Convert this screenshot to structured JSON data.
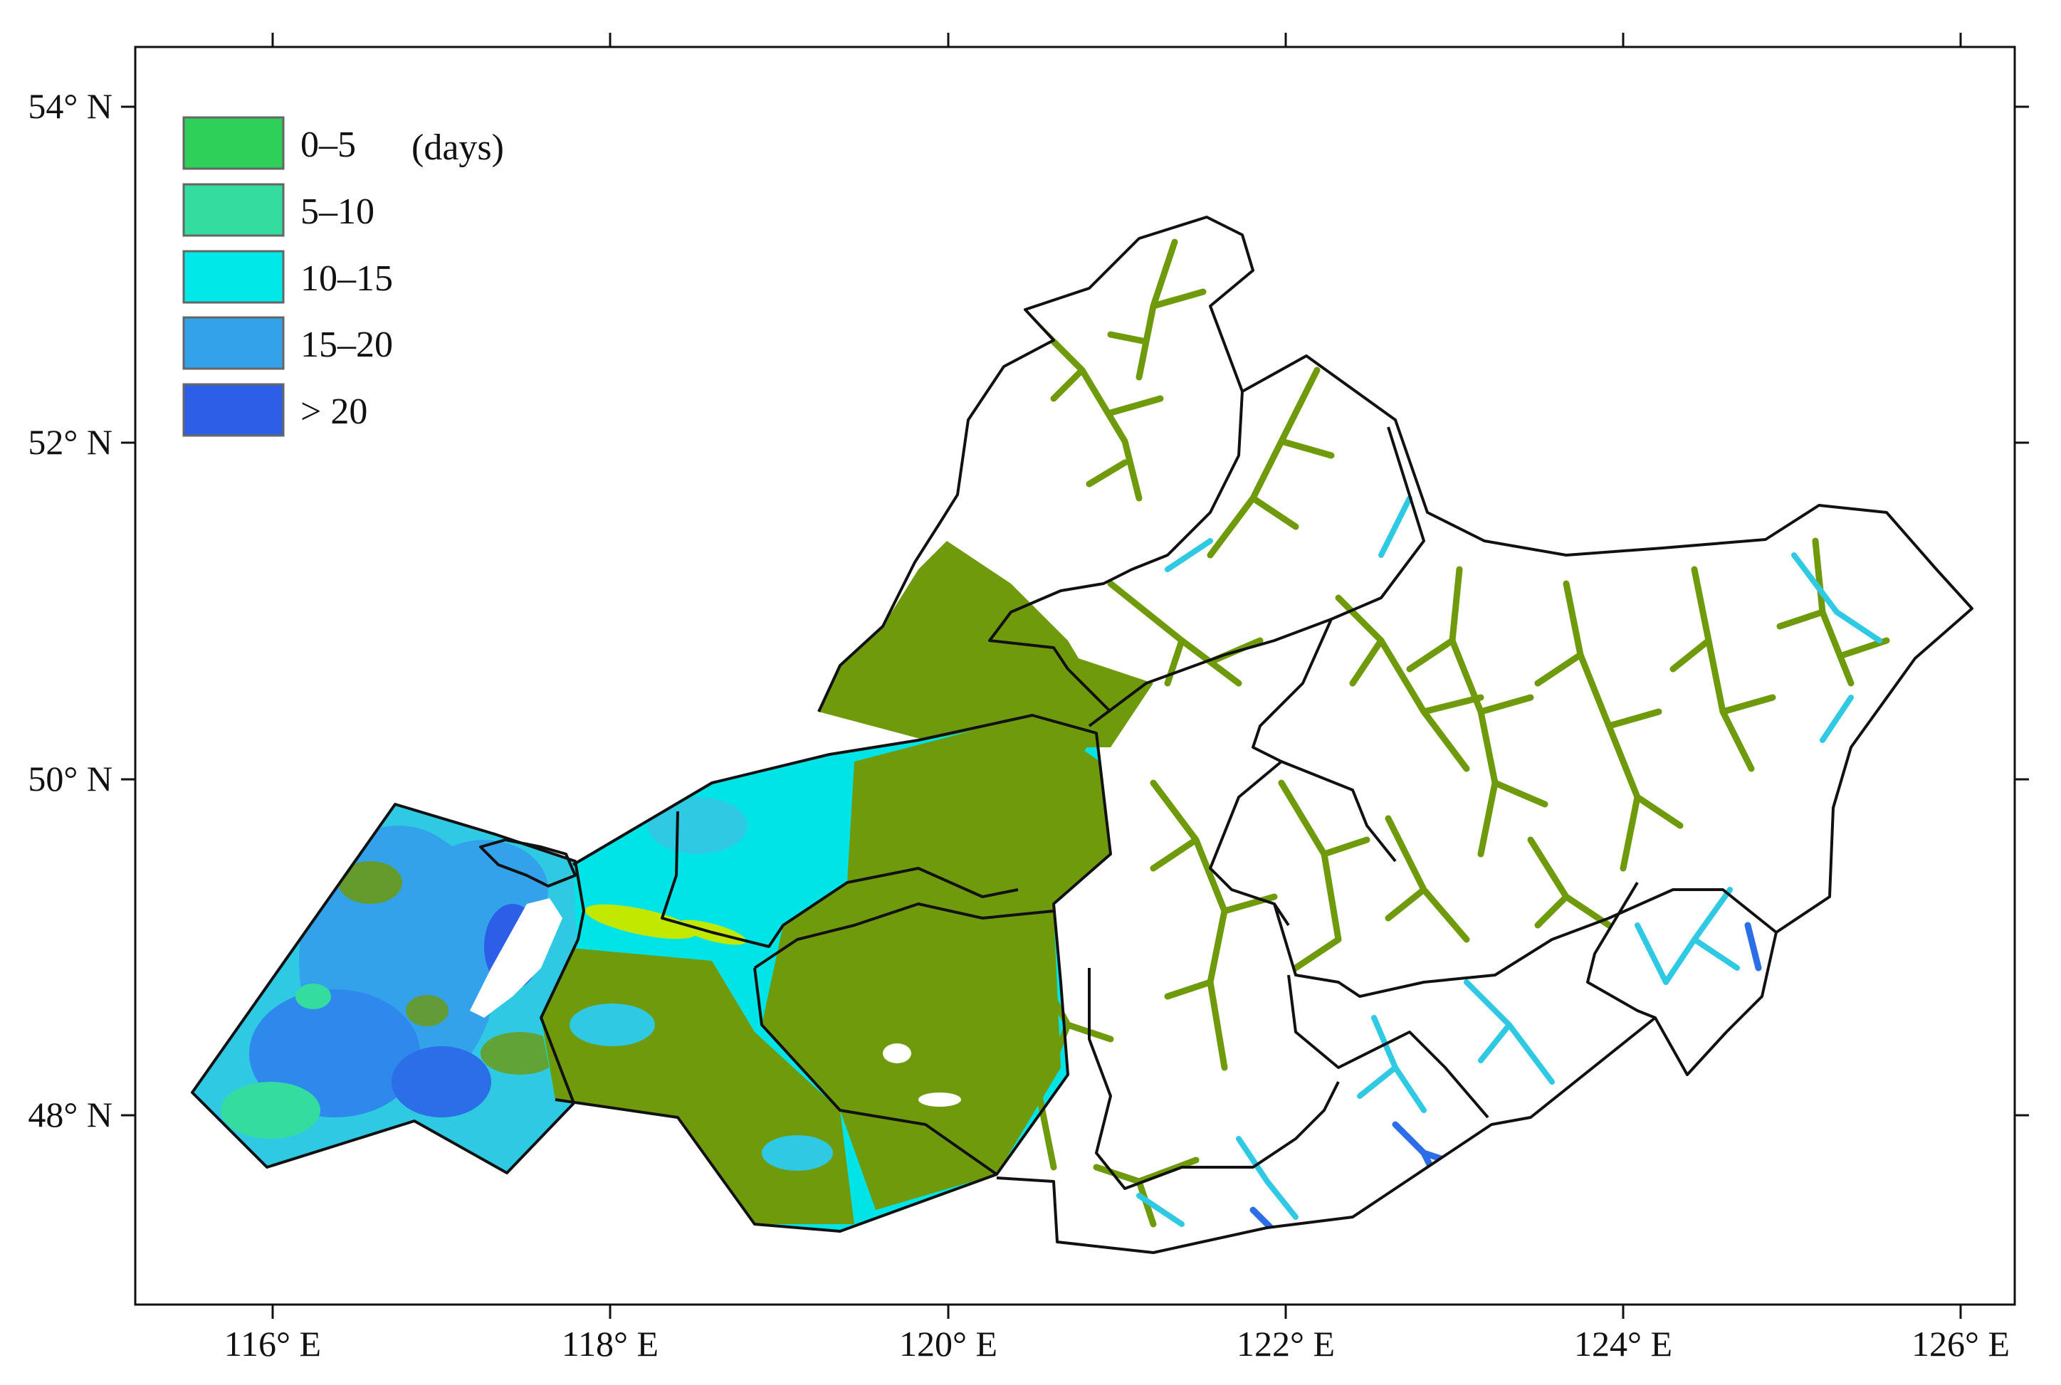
{
  "map": {
    "lat_labels": [
      "54° N",
      "52° N",
      "50° N",
      "48° N"
    ],
    "lon_labels": [
      "116° E",
      "118° E",
      "120° E",
      "122° E",
      "124° E",
      "126° E"
    ],
    "legend": {
      "unit": "(days)",
      "classes": [
        {
          "label": "0–5",
          "color": "#2fd05a"
        },
        {
          "label": "5–10",
          "color": "#34dca0"
        },
        {
          "label": "10–15",
          "color": "#00e8e8"
        },
        {
          "label": "15–20",
          "color": "#33a2ea"
        },
        {
          "label": "> 20",
          "color": "#2c5ee8"
        }
      ]
    },
    "colors": {
      "olive": "#6f9a0c",
      "yellow_green": "#c3e800",
      "boundary": "#111111"
    }
  }
}
